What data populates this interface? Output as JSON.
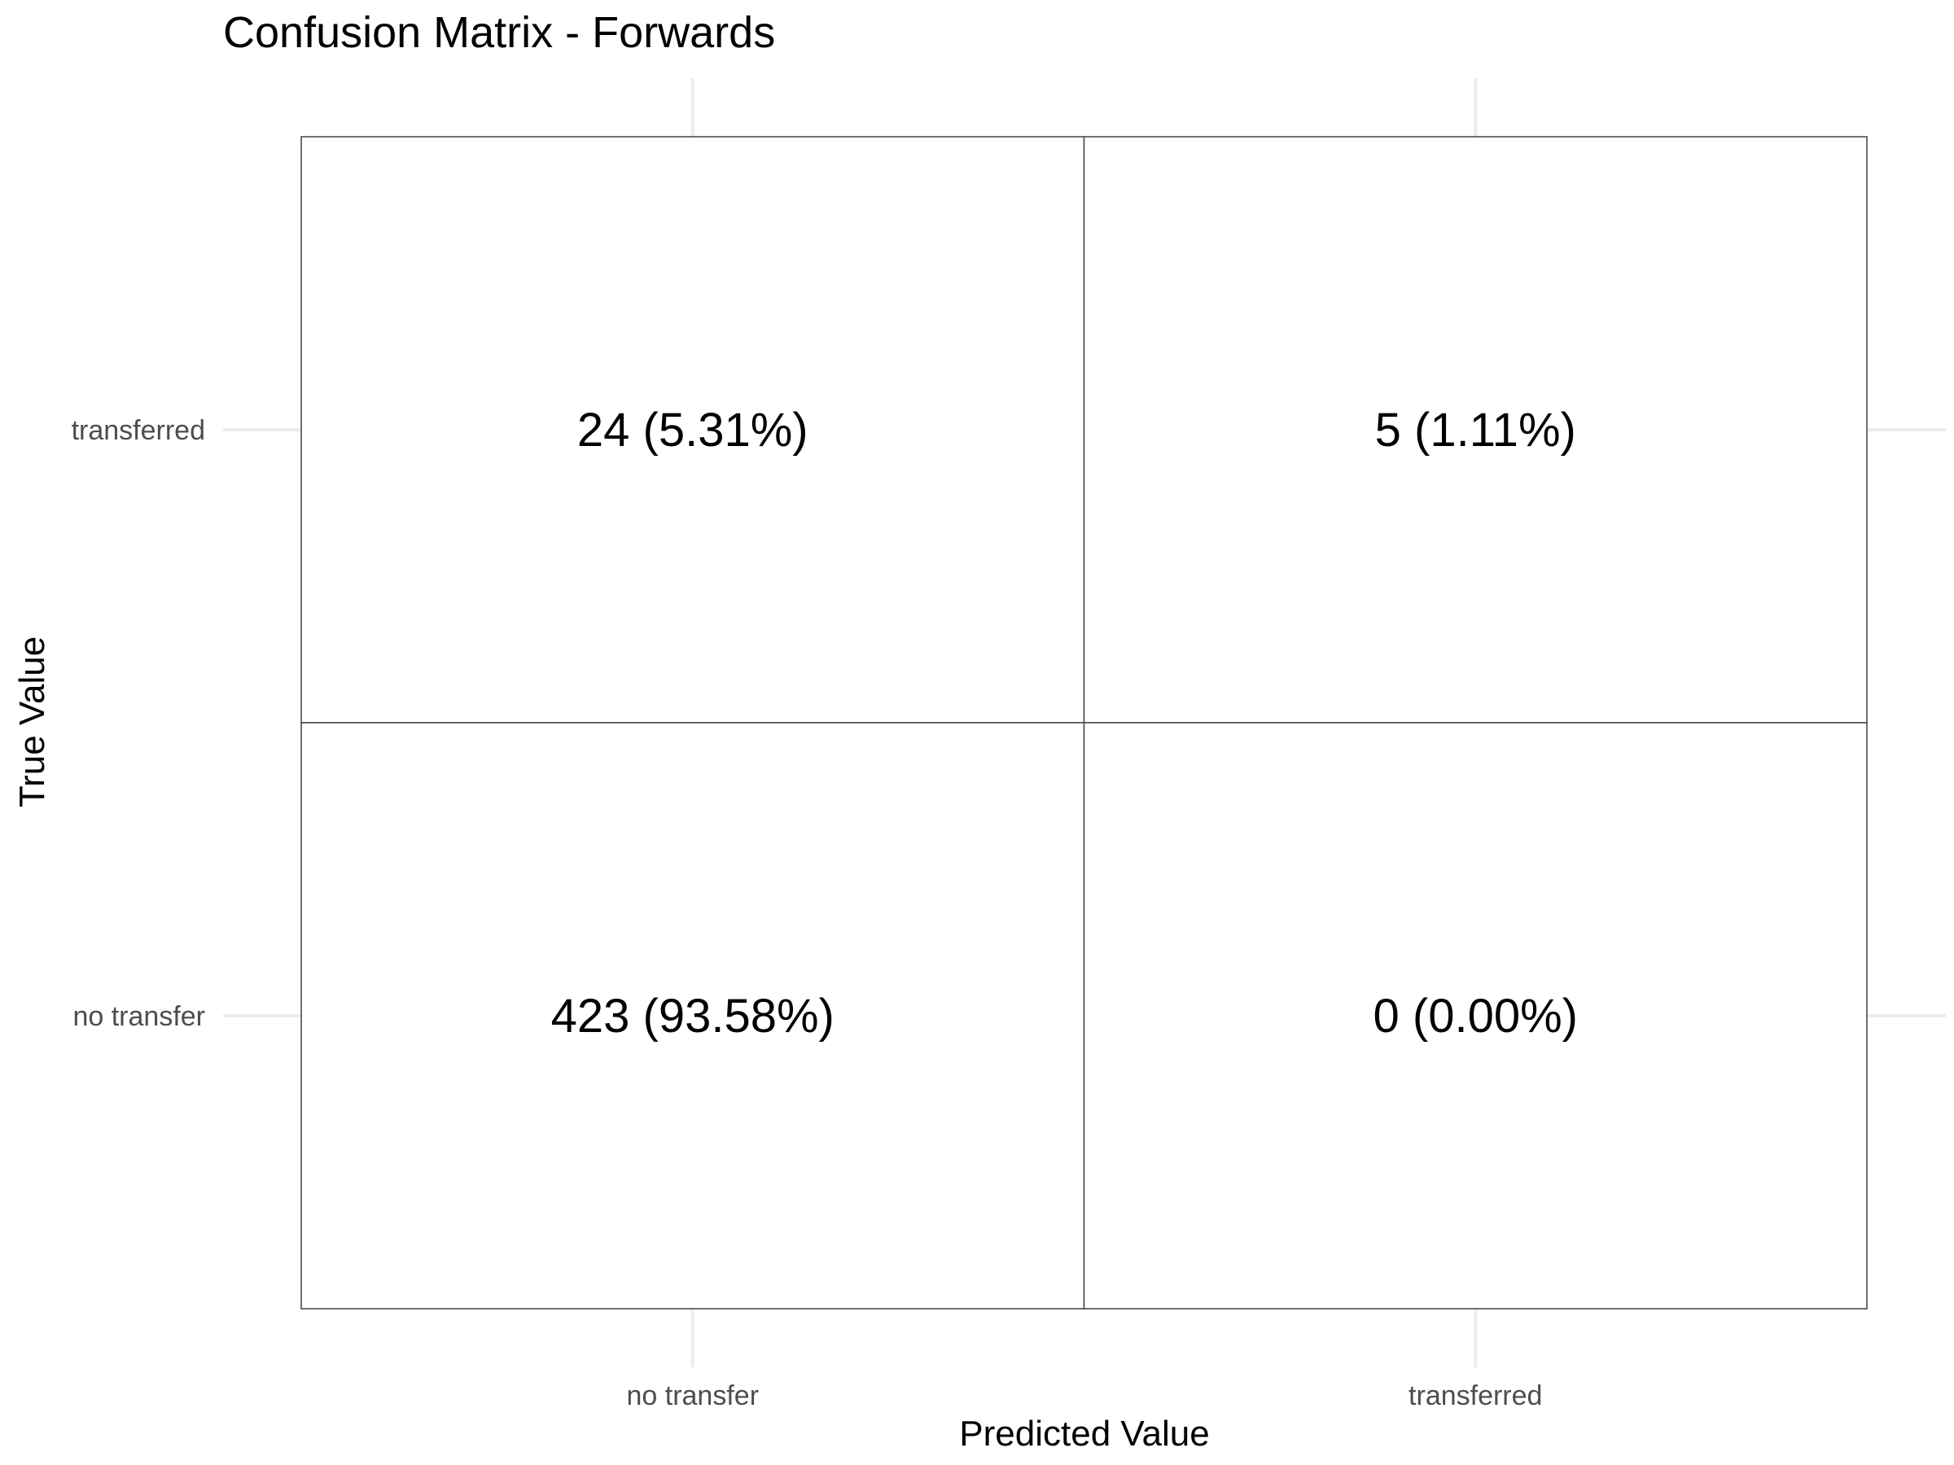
{
  "chart_data": {
    "type": "heatmap",
    "title": "Confusion Matrix - Forwards",
    "xlabel": "Predicted Value",
    "ylabel": "True Value",
    "x_categories": [
      "no transfer",
      "transferred"
    ],
    "y_categories": [
      "no transfer",
      "transferred"
    ],
    "cells": [
      {
        "predicted": "no transfer",
        "true": "transferred",
        "count": 24,
        "percent": 5.31,
        "label": "24 (5.31%)"
      },
      {
        "predicted": "transferred",
        "true": "transferred",
        "count": 5,
        "percent": 1.11,
        "label": "5 (1.11%)"
      },
      {
        "predicted": "no transfer",
        "true": "no transfer",
        "count": 423,
        "percent": 93.58,
        "label": "423 (93.58%)"
      },
      {
        "predicted": "transferred",
        "true": "no transfer",
        "count": 0,
        "percent": 0.0,
        "label": "0 (0.00%)"
      }
    ],
    "fill_color": "#ffffff",
    "border_color": "#4d4d4d",
    "grid": true,
    "legend": "none"
  }
}
